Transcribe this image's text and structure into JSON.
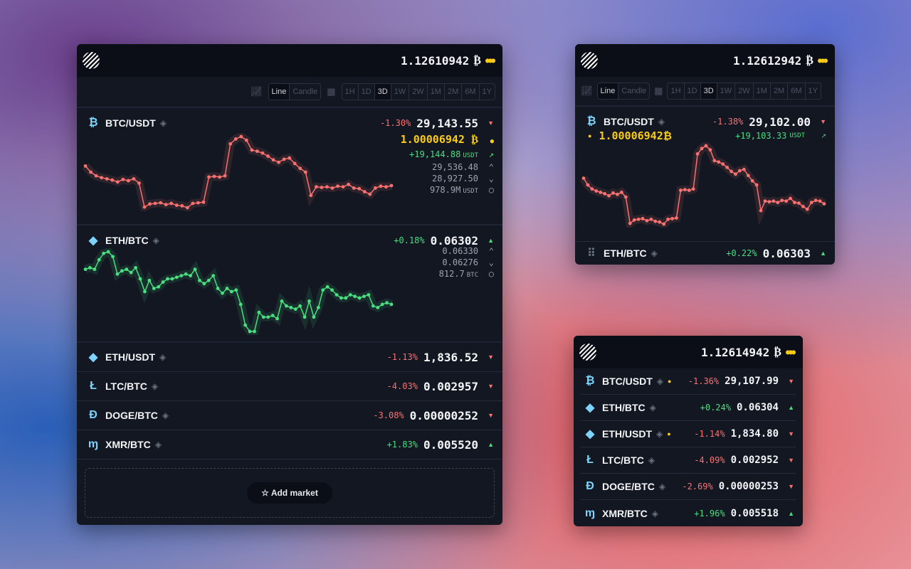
{
  "colors": {
    "up": "#4ade80",
    "down": "#f87171",
    "accent": "#facc15",
    "coin": "#7dd3fc"
  },
  "toolbar": {
    "chart_types": [
      "Line",
      "Candle"
    ],
    "active_type": "Line",
    "ranges": [
      "1H",
      "1D",
      "3D",
      "1W",
      "2W",
      "1M",
      "2M",
      "6M",
      "1Y"
    ],
    "active_range": "3D"
  },
  "main": {
    "balance": "1.12610942",
    "currency_symbol": "₿",
    "btc": {
      "pair": "BTC/USDT",
      "icon": "₿",
      "change": "-1.30%",
      "price": "29,143.55",
      "dir": "down",
      "yield": "1.00006942",
      "pnl": "+19,144.88",
      "pnl_unit": "USDT",
      "high": "29,536.48",
      "low": "28,927.50",
      "volume": "978.9M",
      "volume_unit": "USDT",
      "chart": [
        29290,
        29240,
        29210,
        29195,
        29185,
        29175,
        29160,
        29180,
        29170,
        29185,
        29150,
        28955,
        28980,
        28985,
        28990,
        28975,
        28985,
        28970,
        28965,
        28950,
        28985,
        28990,
        28995,
        29200,
        29205,
        29200,
        29210,
        29470,
        29510,
        29530,
        29500,
        29420,
        29410,
        29395,
        29370,
        29340,
        29320,
        29345,
        29355,
        29310,
        29270,
        29240,
        29050,
        29120,
        29115,
        29120,
        29110,
        29125,
        29120,
        29140,
        29110,
        29105,
        29080,
        29060,
        29110,
        29125,
        29120,
        29130
      ]
    },
    "eth": {
      "pair": "ETH/BTC",
      "icon": "◆",
      "change": "+0.18%",
      "price": "0.06302",
      "dir": "up",
      "high": "0.06330",
      "low": "0.06276",
      "volume": "812.7",
      "volume_unit": "BTC",
      "chart": [
        0.06316,
        0.06317,
        0.06316,
        0.06322,
        0.06326,
        0.06327,
        0.06324,
        0.06313,
        0.06315,
        0.06316,
        0.06314,
        0.06317,
        0.0631,
        0.06302,
        0.06309,
        0.06304,
        0.06305,
        0.06308,
        0.0631,
        0.0631,
        0.06311,
        0.06312,
        0.06313,
        0.06312,
        0.06316,
        0.06309,
        0.06307,
        0.06309,
        0.06312,
        0.06304,
        0.06301,
        0.06304,
        0.06302,
        0.06303,
        0.06294,
        0.06281,
        0.06277,
        0.06277,
        0.06289,
        0.06286,
        0.06286,
        0.06287,
        0.06285,
        0.06296,
        0.06293,
        0.06292,
        0.06291,
        0.06293,
        0.06286,
        0.06296,
        0.06286,
        0.06292,
        0.06303,
        0.06305,
        0.06303,
        0.063,
        0.06298,
        0.06298,
        0.063,
        0.06299,
        0.06298,
        0.06299,
        0.063,
        0.06293,
        0.06292,
        0.06294,
        0.06295,
        0.06294
      ]
    },
    "rows": [
      {
        "pair": "ETH/USDT",
        "icon": "◆",
        "change": "-1.13%",
        "price": "1,836.52",
        "dir": "down"
      },
      {
        "pair": "LTC/BTC",
        "icon": "Ł",
        "change": "-4.03%",
        "price": "0.002957",
        "dir": "down"
      },
      {
        "pair": "DOGE/BTC",
        "icon": "Đ",
        "change": "-3.08%",
        "price": "0.00000252",
        "dir": "down"
      },
      {
        "pair": "XMR/BTC",
        "icon": "ɱ",
        "change": "+1.83%",
        "price": "0.005520",
        "dir": "up"
      }
    ],
    "add_market": "Add market"
  },
  "widget2": {
    "balance": "1.12612942",
    "currency_symbol": "₿",
    "btc": {
      "pair": "BTC/USDT",
      "icon": "₿",
      "change": "-1.38%",
      "price": "29,102.00",
      "dir": "down",
      "yield": "1.00006942",
      "pnl": "+19,103.33",
      "pnl_unit": "USDT",
      "chart": [
        29290,
        29240,
        29210,
        29195,
        29185,
        29175,
        29160,
        29180,
        29170,
        29185,
        29150,
        28955,
        28980,
        28985,
        28990,
        28975,
        28985,
        28970,
        28965,
        28950,
        28985,
        28990,
        28995,
        29200,
        29205,
        29200,
        29210,
        29470,
        29510,
        29530,
        29500,
        29420,
        29410,
        29395,
        29370,
        29340,
        29320,
        29345,
        29355,
        29310,
        29270,
        29240,
        29050,
        29120,
        29115,
        29120,
        29110,
        29125,
        29120,
        29140,
        29110,
        29105,
        29080,
        29060,
        29110,
        29125,
        29120,
        29100
      ]
    },
    "eth": {
      "pair": "ETH/BTC",
      "change": "+0.22%",
      "price": "0.06303",
      "dir": "up"
    }
  },
  "widget3": {
    "balance": "1.12614942",
    "currency_symbol": "₿",
    "rows": [
      {
        "pair": "BTC/USDT",
        "icon": "₿",
        "change": "-1.36%",
        "price": "29,107.99",
        "dir": "down",
        "dot": true
      },
      {
        "pair": "ETH/BTC",
        "icon": "◆",
        "change": "+0.24%",
        "price": "0.06304",
        "dir": "up"
      },
      {
        "pair": "ETH/USDT",
        "icon": "◆",
        "change": "-1.14%",
        "price": "1,834.80",
        "dir": "down",
        "dot": true
      },
      {
        "pair": "LTC/BTC",
        "icon": "Ł",
        "change": "-4.09%",
        "price": "0.002952",
        "dir": "down"
      },
      {
        "pair": "DOGE/BTC",
        "icon": "Đ",
        "change": "-2.69%",
        "price": "0.00000253",
        "dir": "down"
      },
      {
        "pair": "XMR/BTC",
        "icon": "ɱ",
        "change": "+1.96%",
        "price": "0.005518",
        "dir": "up"
      }
    ]
  }
}
